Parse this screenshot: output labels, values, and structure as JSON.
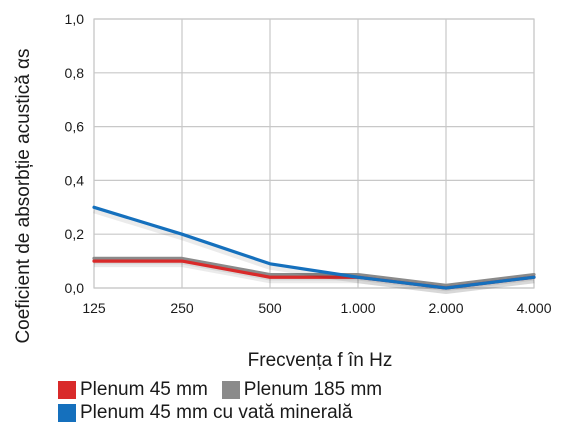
{
  "chart_data": {
    "type": "line",
    "categories": [
      "125",
      "250",
      "500",
      "1.000",
      "2.000",
      "4.000"
    ],
    "xlabel": "Frecvența f în Hz",
    "ylabel": "Coeficient de absorbție acustică αs",
    "ylim": [
      0,
      1
    ],
    "yticks": [
      "0,0",
      "0,2",
      "0,4",
      "0,6",
      "0,8",
      "1,0"
    ],
    "grid": true,
    "legend_position": "bottom",
    "series": [
      {
        "name": "Plenum 45 mm cu vată minerală",
        "color": "#1570bd",
        "values": [
          0.3,
          0.2,
          0.09,
          0.04,
          0.0,
          0.04
        ]
      },
      {
        "name": "Plenum 185 mm",
        "color": "#8a8a8a",
        "values": [
          0.11,
          0.11,
          0.05,
          0.05,
          0.01,
          0.05
        ]
      },
      {
        "name": "Plenum 45 mm",
        "color": "#d92a2a",
        "values": [
          0.1,
          0.1,
          0.04,
          0.04,
          0.0,
          0.04
        ]
      }
    ]
  }
}
